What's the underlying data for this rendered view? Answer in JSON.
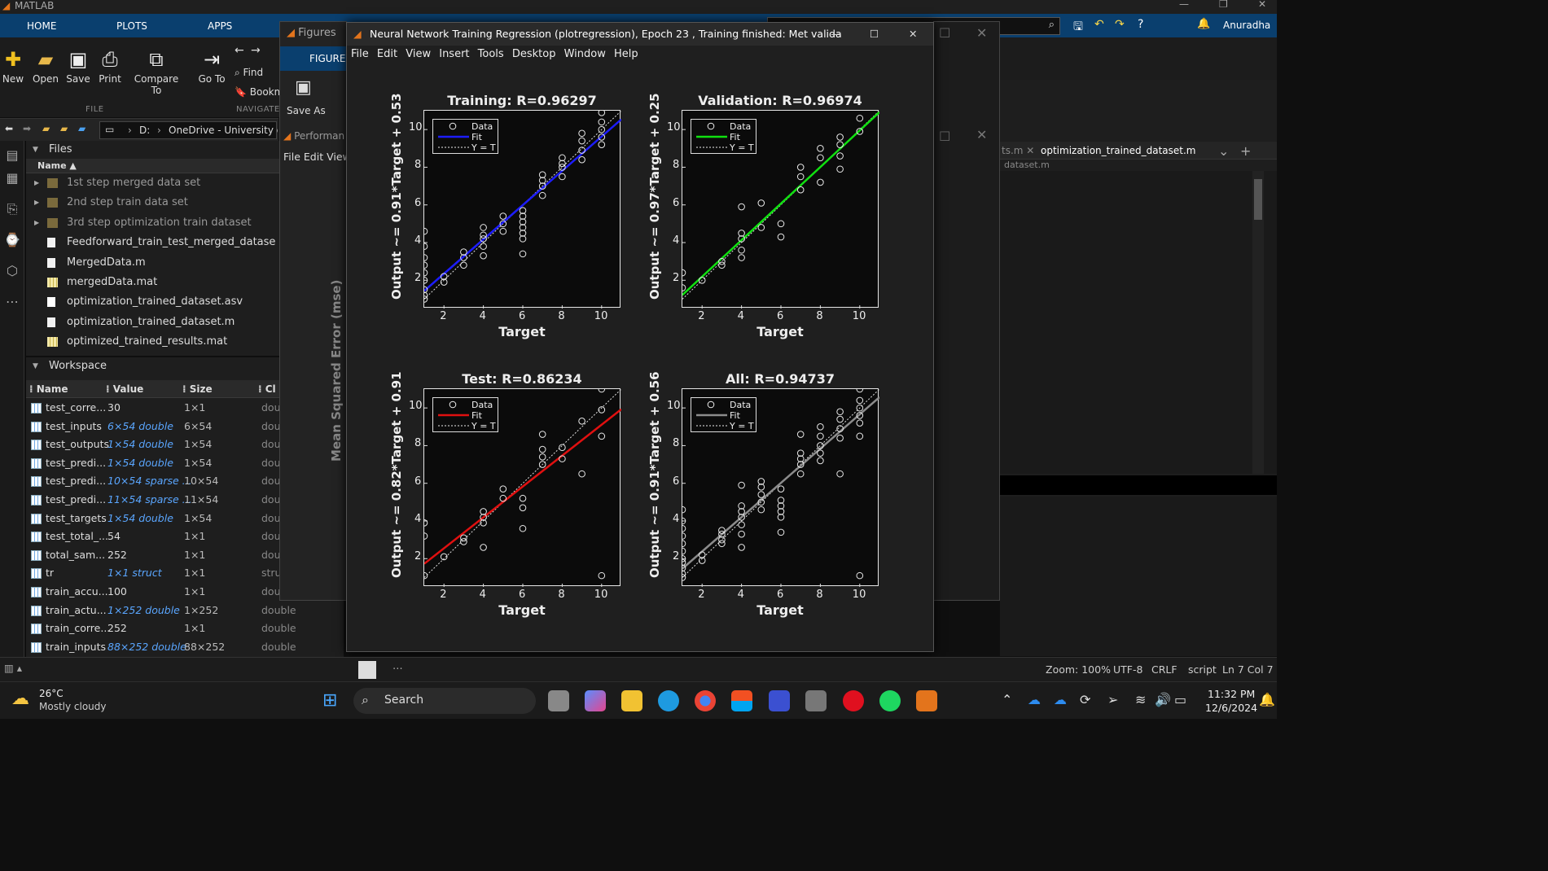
{
  "app": {
    "name": "MATLAB",
    "user": "Anuradha"
  },
  "ribbon": {
    "tabs": [
      "HOME",
      "PLOTS",
      "APPS"
    ],
    "buttons": [
      "New",
      "Open",
      "Save",
      "Print",
      "Compare To",
      "Go To"
    ],
    "nav_items": [
      "Find",
      "Bookm"
    ],
    "sections": [
      "FILE",
      "NAVIGATE"
    ]
  },
  "address": {
    "drive": "D:",
    "path": "OneDrive - University of"
  },
  "files": {
    "title": "Files",
    "column": "Name ▲",
    "items": [
      {
        "label": "1st step merged data set",
        "type": "folder"
      },
      {
        "label": "2nd step train data set",
        "type": "folder"
      },
      {
        "label": "3rd step optimization train dataset",
        "type": "folder"
      },
      {
        "label": "Feedforward_train_test_merged_datase",
        "type": "m"
      },
      {
        "label": "MergedData.m",
        "type": "m"
      },
      {
        "label": "mergedData.mat",
        "type": "mat"
      },
      {
        "label": "optimization_trained_dataset.asv",
        "type": "file"
      },
      {
        "label": "optimization_trained_dataset.m",
        "type": "m"
      },
      {
        "label": "optimized_trained_results.mat",
        "type": "mat"
      }
    ]
  },
  "workspace": {
    "title": "Workspace",
    "headers": [
      "Name",
      "Value",
      "Size",
      "Cl"
    ],
    "rows": [
      {
        "name": "test_corre...",
        "value": "30",
        "size": "1×1",
        "cls": "dou",
        "link": false
      },
      {
        "name": "test_inputs",
        "value": "6×54 double",
        "size": "6×54",
        "cls": "dou",
        "link": true
      },
      {
        "name": "test_outputs",
        "value": "1×54 double",
        "size": "1×54",
        "cls": "dou",
        "link": true
      },
      {
        "name": "test_predi...",
        "value": "1×54 double",
        "size": "1×54",
        "cls": "dou",
        "link": true
      },
      {
        "name": "test_predi...",
        "value": "10×54 sparse ...",
        "size": "10×54",
        "cls": "dou",
        "link": true
      },
      {
        "name": "test_predi...",
        "value": "11×54 sparse ...",
        "size": "11×54",
        "cls": "dou",
        "link": true
      },
      {
        "name": "test_targets",
        "value": "1×54 double",
        "size": "1×54",
        "cls": "dou",
        "link": true
      },
      {
        "name": "test_total_...",
        "value": "54",
        "size": "1×1",
        "cls": "dou",
        "link": false
      },
      {
        "name": "total_sam...",
        "value": "252",
        "size": "1×1",
        "cls": "dou",
        "link": false
      },
      {
        "name": "tr",
        "value": "1×1 struct",
        "size": "1×1",
        "cls": "stru",
        "link": true
      },
      {
        "name": "train_accu...",
        "value": "100",
        "size": "1×1",
        "cls": "dou",
        "link": false
      },
      {
        "name": "train_actu...",
        "value": "1×252 double",
        "size": "1×252",
        "cls": "double",
        "link": true
      },
      {
        "name": "train_corre...",
        "value": "252",
        "size": "1×1",
        "cls": "double",
        "link": false
      },
      {
        "name": "train_inputs",
        "value": "88×252 double",
        "size": "88×252",
        "cls": "double",
        "link": true
      }
    ]
  },
  "figures_window": {
    "title": "Figures",
    "tab": "FIGURE",
    "save_as": "Save As",
    "performance": "Performan",
    "menu": [
      "File",
      "Edit",
      "View"
    ],
    "ylabel": "Mean Squared Error  (mse)"
  },
  "editor": {
    "tabs": [
      "ts.m",
      "optimization_trained_dataset.m"
    ],
    "path": "dataset.m"
  },
  "regression_window": {
    "title": "Neural Network Training Regression (plotregression), Epoch 23 , Training finished: Met validation c...",
    "menu": [
      "File",
      "Edit",
      "View",
      "Insert",
      "Tools",
      "Desktop",
      "Window",
      "Help"
    ]
  },
  "chart_data": [
    {
      "type": "scatter",
      "title": "Training: R=0.96297",
      "xlabel": "Target",
      "ylabel": "Output ~= 0.91*Target + 0.53",
      "xlim": [
        1,
        11
      ],
      "ylim": [
        0.5,
        11
      ],
      "xticks": [
        2,
        4,
        6,
        8,
        10
      ],
      "yticks": [
        2,
        4,
        6,
        8,
        10
      ],
      "fit": {
        "slope": 0.91,
        "intercept": 0.53,
        "color": "#1d1dff"
      },
      "legend": [
        "Data",
        "Fit",
        "Y = T"
      ],
      "x": [
        1,
        1,
        1,
        1,
        1,
        1,
        1,
        1,
        1,
        2,
        2,
        3,
        3,
        3,
        4,
        4,
        4,
        4,
        4,
        5,
        5,
        5,
        6,
        6,
        6,
        6,
        6,
        6,
        6,
        7,
        7,
        7,
        7,
        8,
        8,
        8,
        8,
        9,
        9,
        9,
        9,
        10,
        10,
        10,
        10,
        10
      ],
      "y": [
        1,
        1.2,
        1.5,
        2,
        2.4,
        2.8,
        3.2,
        3.8,
        4.6,
        1.9,
        2.2,
        2.8,
        3.2,
        3.5,
        3.3,
        3.8,
        4.2,
        4.4,
        4.8,
        4.6,
        5,
        5.4,
        3.4,
        4.2,
        4.5,
        4.8,
        5.1,
        5.4,
        5.7,
        6.5,
        7,
        7.3,
        7.6,
        7.5,
        8,
        8.2,
        8.5,
        8.4,
        8.9,
        9.4,
        9.8,
        9.2,
        9.6,
        10,
        10.4,
        10.9
      ]
    },
    {
      "type": "scatter",
      "title": "Validation: R=0.96974",
      "xlabel": "Target",
      "ylabel": "Output ~= 0.97*Target + 0.25",
      "xlim": [
        1,
        11
      ],
      "ylim": [
        0.5,
        11
      ],
      "xticks": [
        2,
        4,
        6,
        8,
        10
      ],
      "yticks": [
        2,
        4,
        6,
        8,
        10
      ],
      "fit": {
        "slope": 0.97,
        "intercept": 0.25,
        "color": "#10e010"
      },
      "legend": [
        "Data",
        "Fit",
        "Y = T"
      ],
      "x": [
        1,
        1,
        2,
        3,
        3,
        4,
        4,
        4,
        4,
        4,
        5,
        5,
        6,
        6,
        7,
        7,
        7,
        8,
        8,
        8,
        9,
        9,
        9,
        9,
        10,
        10
      ],
      "y": [
        1.6,
        2.4,
        2,
        2.8,
        3,
        3.2,
        3.6,
        4.2,
        4.5,
        5.9,
        4.8,
        6.1,
        4.3,
        5,
        6.8,
        7.5,
        8,
        7.2,
        8.5,
        9,
        7.9,
        8.6,
        9.2,
        9.6,
        9.9,
        10.6
      ]
    },
    {
      "type": "scatter",
      "title": "Test: R=0.86234",
      "xlabel": "Target",
      "ylabel": "Output ~= 0.82*Target + 0.91",
      "xlim": [
        1,
        11
      ],
      "ylim": [
        0.5,
        11
      ],
      "xticks": [
        2,
        4,
        6,
        8,
        10
      ],
      "yticks": [
        2,
        4,
        6,
        8,
        10
      ],
      "fit": {
        "slope": 0.82,
        "intercept": 0.91,
        "color": "#e01010"
      },
      "legend": [
        "Data",
        "Fit",
        "Y = T"
      ],
      "x": [
        1,
        1,
        1,
        2,
        3,
        3,
        4,
        4,
        4,
        4,
        5,
        5,
        6,
        6,
        6,
        7,
        7,
        7,
        7,
        8,
        8,
        9,
        9,
        10,
        10,
        10,
        10
      ],
      "y": [
        1.1,
        3.2,
        3.9,
        2.1,
        2.9,
        3.1,
        2.6,
        3.9,
        4.2,
        4.5,
        5.2,
        5.7,
        3.6,
        4.7,
        5.2,
        7,
        7.4,
        7.8,
        8.6,
        7.3,
        7.9,
        6.5,
        9.3,
        1.1,
        8.5,
        9.9,
        11
      ]
    },
    {
      "type": "scatter",
      "title": "All: R=0.94737",
      "xlabel": "Target",
      "ylabel": "Output ~= 0.91*Target + 0.56",
      "xlim": [
        1,
        11
      ],
      "ylim": [
        0.5,
        11
      ],
      "xticks": [
        2,
        4,
        6,
        8,
        10
      ],
      "yticks": [
        2,
        4,
        6,
        8,
        10
      ],
      "fit": {
        "slope": 0.91,
        "intercept": 0.56,
        "color": "#8c8c8c"
      },
      "legend": [
        "Data",
        "Fit",
        "Y = T"
      ],
      "x": [
        1,
        1,
        1,
        1,
        1,
        1,
        1,
        1,
        1,
        1,
        1,
        2,
        2,
        3,
        3,
        3,
        3,
        4,
        4,
        4,
        4,
        4,
        4,
        4,
        5,
        5,
        5,
        5,
        5,
        6,
        6,
        6,
        6,
        6,
        6,
        7,
        7,
        7,
        7,
        7,
        8,
        8,
        8,
        8,
        8,
        9,
        9,
        9,
        9,
        9,
        10,
        10,
        10,
        10,
        10,
        10,
        10
      ],
      "y": [
        1,
        1.2,
        1.5,
        1.8,
        2,
        2.4,
        2.8,
        3.2,
        3.6,
        4,
        4.6,
        1.9,
        2.2,
        2.8,
        3,
        3.3,
        3.5,
        2.6,
        3.3,
        3.8,
        4.2,
        4.5,
        4.8,
        5.9,
        4.6,
        5,
        5.4,
        5.8,
        6.1,
        3.4,
        4.2,
        4.5,
        4.8,
        5.1,
        5.7,
        6.5,
        7,
        7.3,
        7.6,
        8.6,
        7.2,
        7.6,
        8,
        8.5,
        9,
        6.5,
        8.4,
        8.9,
        9.4,
        9.8,
        1.1,
        8.5,
        9.2,
        9.6,
        10,
        10.4,
        11
      ]
    }
  ],
  "status": {
    "zoom": "Zoom: 100%",
    "encoding": "UTF-8",
    "eol": "CRLF",
    "type": "script",
    "pos": "Ln  7  Col  7"
  },
  "taskbar": {
    "temp": "26°C",
    "weather": "Mostly cloudy",
    "search": "Search",
    "time": "11:32 PM",
    "date": "12/6/2024"
  }
}
